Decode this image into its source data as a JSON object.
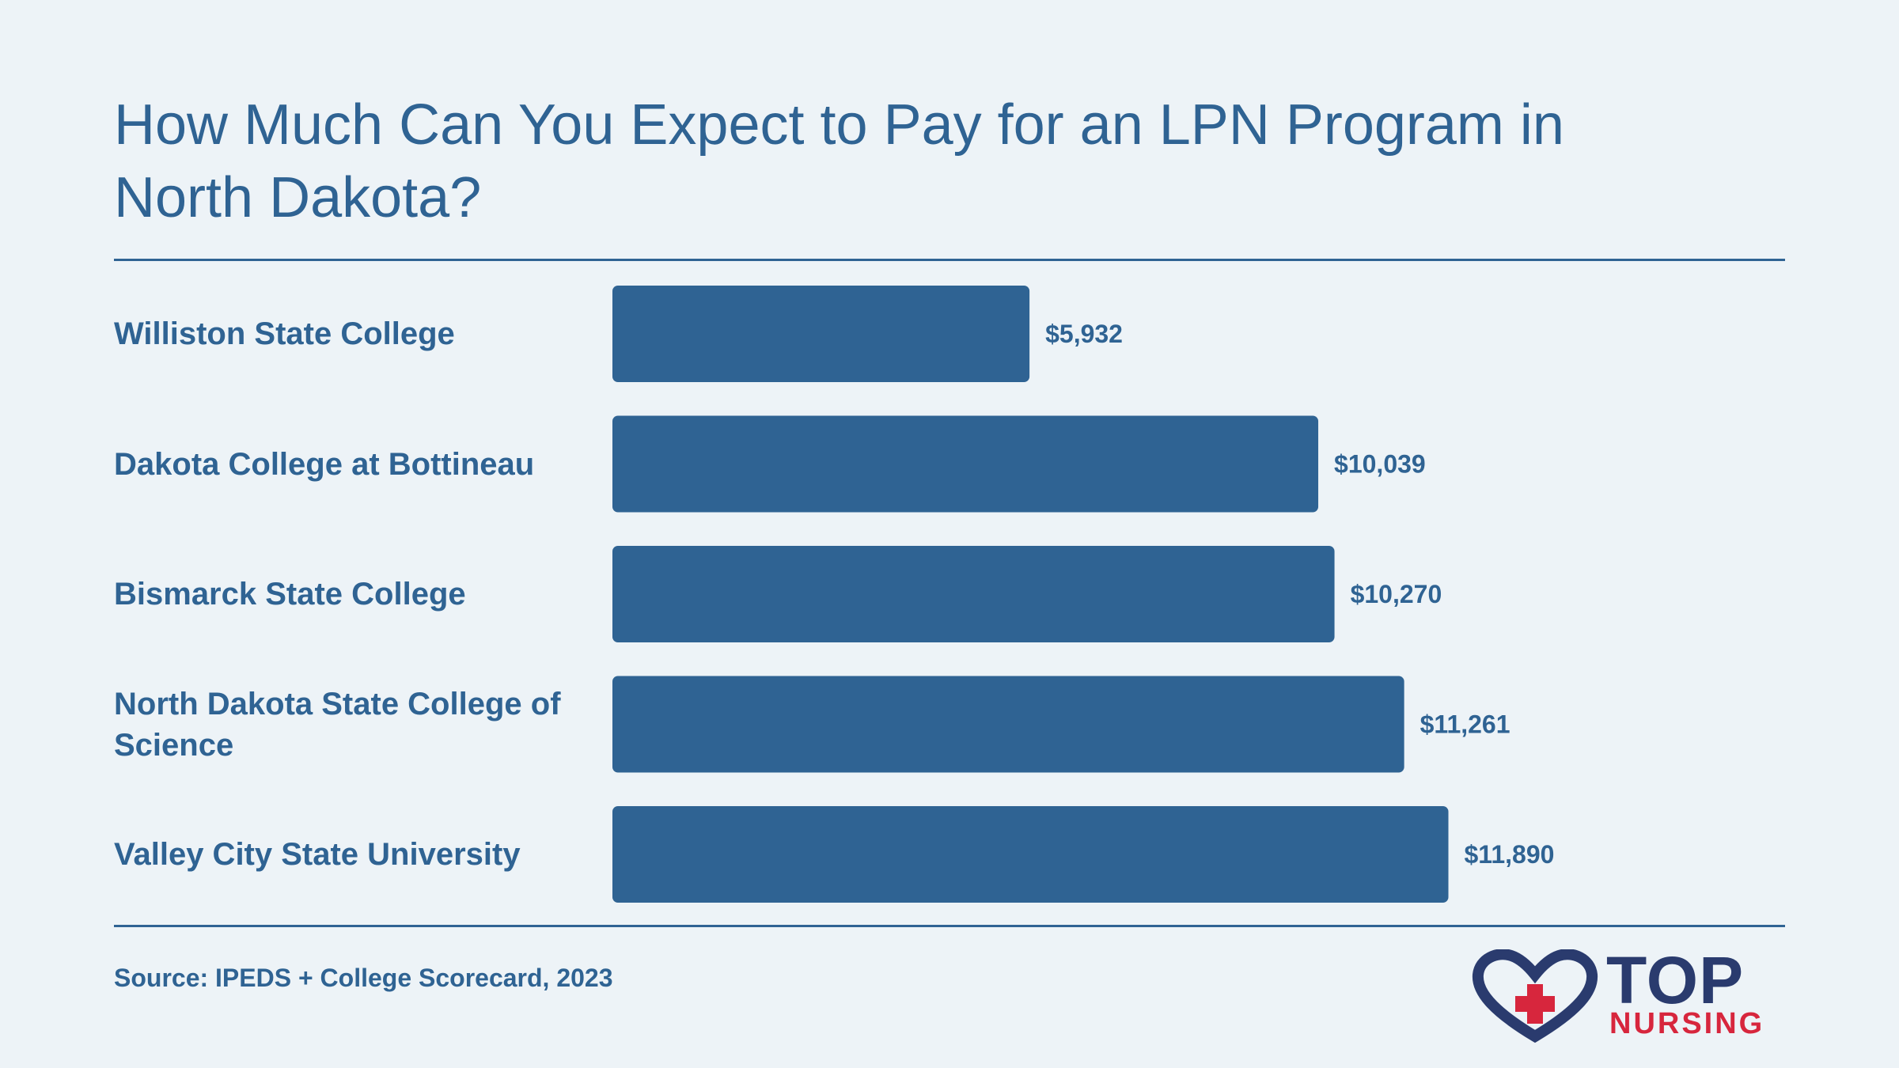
{
  "title": "How Much Can You Expect to Pay for an LPN Program in North Dakota?",
  "source": "Source: IPEDS + College Scorecard, 2023",
  "logo": {
    "top": "TOP",
    "nursing": "NURSING",
    "icon": "heart-cross-icon"
  },
  "colors": {
    "bar": "#2f6393",
    "text": "#2f6393",
    "background": "#edf3f7",
    "logo_navy": "#2a3b6e",
    "logo_red": "#d7263d"
  },
  "chart_data": {
    "type": "bar",
    "orientation": "horizontal",
    "title": "How Much Can You Expect to Pay for an LPN Program in North Dakota?",
    "categories": [
      "Williston State College",
      "Dakota College at Bottineau",
      "Bismarck State College",
      "North Dakota State College of Science",
      "Valley City State University"
    ],
    "values": [
      5932,
      10039,
      10270,
      11261,
      11890
    ],
    "value_labels": [
      "$5,932",
      "$10,039",
      "$10,270",
      "$11,261",
      "$11,890"
    ],
    "xlim": [
      0,
      14000
    ],
    "grid": false,
    "legend": "none"
  }
}
